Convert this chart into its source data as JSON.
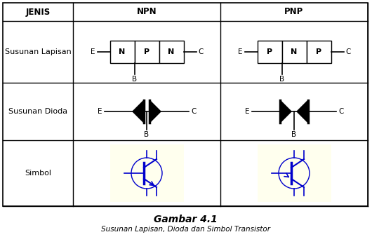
{
  "title": "Gambar 4.1",
  "subtitle": "Susunan Lapisan, Dioda dan Simbol Transistor",
  "col_headers": [
    "JENIS",
    "NPN",
    "PNP"
  ],
  "row_headers": [
    "Susunan Lapisan",
    "Susunan Dioda",
    "Simbol"
  ],
  "npn_layers": [
    "N",
    "P",
    "N"
  ],
  "pnp_layers": [
    "P",
    "N",
    "P"
  ],
  "bg_color": "#ffffff",
  "symbol_bg": "#ffffee",
  "table_border": "#000000",
  "text_color": "#000000",
  "transistor_color": "#0000cc",
  "line_color": "#000000",
  "figsize": [
    5.3,
    3.58
  ],
  "dpi": 100
}
